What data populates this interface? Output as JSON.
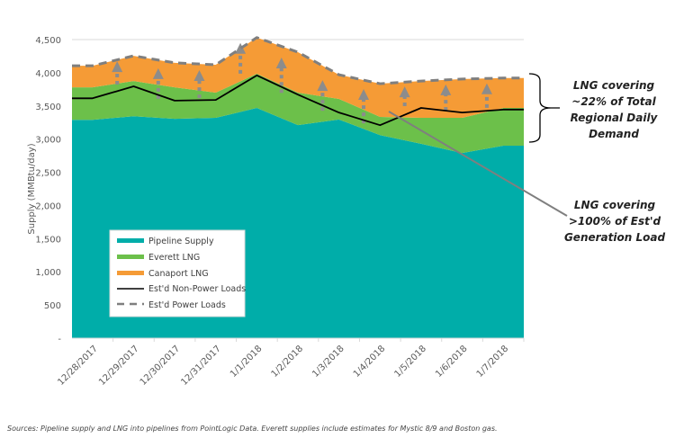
{
  "chart_data": {
    "type": "area",
    "stacked": true,
    "title": "",
    "xlabel": "",
    "ylabel": "Supply (MMBtu/day)",
    "ylim": [
      0,
      4500
    ],
    "yticks": [
      0,
      500,
      1000,
      1500,
      2000,
      2500,
      3000,
      3500,
      4000,
      4500
    ],
    "ytick_labels": [
      "-",
      "500",
      "1,000",
      "1,500",
      "2,000",
      "2,500",
      "3,000",
      "3,500",
      "4,000",
      "4,500"
    ],
    "grid": "horizontal-top-only",
    "categories": [
      "12/28/2017",
      "12/29/2017",
      "12/30/2017",
      "12/31/2017",
      "1/1/2018",
      "1/2/2018",
      "1/3/2018",
      "1/4/2018",
      "1/5/2018",
      "1/6/2018",
      "1/7/2018"
    ],
    "series": [
      {
        "name": "Pipeline Supply",
        "kind": "area",
        "color": "#00ADA9",
        "values": [
          3290,
          3345,
          3305,
          3320,
          3470,
          3210,
          3295,
          3060,
          2930,
          2790,
          2900
        ]
      },
      {
        "name": "Everett LNG",
        "kind": "area",
        "color": "#6CC04A",
        "values": [
          490,
          530,
          475,
          380,
          515,
          490,
          310,
          275,
          390,
          530,
          570
        ]
      },
      {
        "name": "Canaport LNG",
        "kind": "area",
        "color": "#F59B36",
        "values": [
          325,
          380,
          370,
          420,
          545,
          610,
          365,
          500,
          555,
          585,
          450
        ]
      },
      {
        "name": "Est'd Non-Power Loads",
        "kind": "line",
        "color": "#000000",
        "values": [
          3615,
          3795,
          3580,
          3590,
          3960,
          3670,
          3400,
          3210,
          3470,
          3400,
          3445
        ]
      },
      {
        "name": "Est'd Power Loads",
        "kind": "dashed-line",
        "color": "#7F7F7F",
        "values": [
          4105,
          4255,
          4150,
          4120,
          4530,
          4310,
          3970,
          3835,
          3875,
          3905,
          3920
        ]
      }
    ],
    "legend": {
      "position": "bottom-left-inside",
      "entries": [
        "Pipeline Supply",
        "Everett LNG",
        "Canaport LNG",
        "Est'd Non-Power Loads",
        "Est'd Power Loads"
      ]
    },
    "annotations": [
      {
        "text": "LNG covering ~22% of Total Regional Daily Demand",
        "type": "bracket",
        "lines": [
          "LNG covering",
          "~22% of Total",
          "Regional Daily",
          "Demand"
        ]
      },
      {
        "text": "LNG covering >100% of Est'd Generation Load",
        "type": "pointer",
        "lines": [
          "LNG covering",
          ">100% of Est'd",
          "Generation Load"
        ]
      }
    ],
    "arrow_markers_at": [
      "12/29/2017",
      "12/30/2017",
      "12/31/2017",
      "1/1/2018",
      "1/2/2018",
      "1/3/2018",
      "1/4/2018",
      "1/5/2018",
      "1/6/2018",
      "1/7/2018"
    ]
  },
  "footer": "Sources:  Pipeline supply and LNG into pipelines  from PointLogic Data.    Everett supplies include estimates for Mystic 8/9 and Boston gas."
}
